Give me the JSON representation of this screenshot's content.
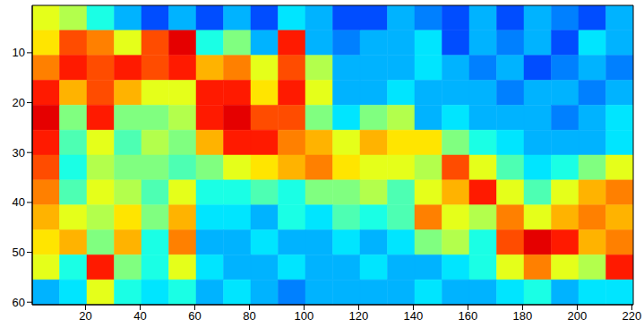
{
  "chart_data": {
    "type": "heatmap",
    "xlim": [
      0.5,
      220.5
    ],
    "ylim": [
      0.5,
      60.5
    ],
    "xticks": [
      20,
      40,
      60,
      80,
      100,
      120,
      140,
      160,
      180,
      200,
      220
    ],
    "yticks": [
      10,
      20,
      30,
      40,
      50,
      60
    ],
    "y_reversed": true,
    "clim": [
      0,
      1
    ],
    "x_edges": [
      0.5,
      10.5,
      20.5,
      30.5,
      40.5,
      50.5,
      60.5,
      70.5,
      80.5,
      90.5,
      100.5,
      110.5,
      120.5,
      130.5,
      140.5,
      150.5,
      160.5,
      170.5,
      180.5,
      190.5,
      200.5,
      210.5,
      220.5
    ],
    "y_edges": [
      0.5,
      5.5,
      10.5,
      15.5,
      20.5,
      25.5,
      30.5,
      35.5,
      40.5,
      45.5,
      50.5,
      55.5,
      60.5
    ],
    "cells": [
      [
        0.6,
        0.55,
        0.4,
        0.3,
        0.2,
        0.3,
        0.2,
        0.3,
        0.2,
        0.35,
        0.3,
        0.2,
        0.2,
        0.3,
        0.25,
        0.2,
        0.3,
        0.2,
        0.3,
        0.25,
        0.2,
        0.3
      ],
      [
        0.65,
        0.8,
        0.75,
        0.6,
        0.8,
        0.9,
        0.4,
        0.5,
        0.3,
        0.85,
        0.3,
        0.25,
        0.3,
        0.3,
        0.35,
        0.2,
        0.3,
        0.25,
        0.3,
        0.2,
        0.35,
        0.3
      ],
      [
        0.75,
        0.85,
        0.8,
        0.85,
        0.8,
        0.85,
        0.7,
        0.75,
        0.6,
        0.8,
        0.55,
        0.3,
        0.3,
        0.3,
        0.35,
        0.3,
        0.25,
        0.3,
        0.2,
        0.25,
        0.3,
        0.25
      ],
      [
        0.85,
        0.7,
        0.8,
        0.7,
        0.6,
        0.6,
        0.85,
        0.85,
        0.65,
        0.85,
        0.6,
        0.3,
        0.3,
        0.35,
        0.3,
        0.3,
        0.3,
        0.25,
        0.3,
        0.3,
        0.25,
        0.3
      ],
      [
        0.9,
        0.5,
        0.85,
        0.5,
        0.5,
        0.55,
        0.85,
        0.9,
        0.8,
        0.8,
        0.5,
        0.35,
        0.5,
        0.55,
        0.3,
        0.35,
        0.3,
        0.3,
        0.3,
        0.25,
        0.3,
        0.35
      ],
      [
        0.85,
        0.45,
        0.6,
        0.45,
        0.55,
        0.5,
        0.7,
        0.85,
        0.85,
        0.75,
        0.7,
        0.6,
        0.7,
        0.65,
        0.65,
        0.5,
        0.4,
        0.35,
        0.3,
        0.3,
        0.3,
        0.35
      ],
      [
        0.8,
        0.4,
        0.55,
        0.5,
        0.5,
        0.45,
        0.5,
        0.6,
        0.65,
        0.7,
        0.75,
        0.65,
        0.6,
        0.6,
        0.55,
        0.8,
        0.6,
        0.45,
        0.35,
        0.4,
        0.5,
        0.6
      ],
      [
        0.75,
        0.45,
        0.6,
        0.55,
        0.45,
        0.6,
        0.4,
        0.4,
        0.45,
        0.4,
        0.5,
        0.5,
        0.55,
        0.45,
        0.6,
        0.7,
        0.85,
        0.6,
        0.45,
        0.6,
        0.7,
        0.75
      ],
      [
        0.7,
        0.6,
        0.55,
        0.65,
        0.5,
        0.7,
        0.35,
        0.35,
        0.3,
        0.4,
        0.35,
        0.45,
        0.4,
        0.45,
        0.75,
        0.6,
        0.55,
        0.75,
        0.6,
        0.7,
        0.75,
        0.7
      ],
      [
        0.65,
        0.7,
        0.5,
        0.7,
        0.4,
        0.75,
        0.3,
        0.3,
        0.35,
        0.3,
        0.3,
        0.35,
        0.3,
        0.35,
        0.5,
        0.55,
        0.4,
        0.8,
        0.9,
        0.85,
        0.7,
        0.75
      ],
      [
        0.6,
        0.4,
        0.85,
        0.5,
        0.4,
        0.6,
        0.35,
        0.3,
        0.3,
        0.35,
        0.3,
        0.3,
        0.35,
        0.3,
        0.3,
        0.35,
        0.4,
        0.6,
        0.75,
        0.6,
        0.55,
        0.85
      ],
      [
        0.3,
        0.35,
        0.6,
        0.4,
        0.35,
        0.4,
        0.3,
        0.35,
        0.3,
        0.25,
        0.3,
        0.3,
        0.3,
        0.3,
        0.35,
        0.3,
        0.3,
        0.35,
        0.4,
        0.3,
        0.35,
        0.35
      ]
    ]
  }
}
